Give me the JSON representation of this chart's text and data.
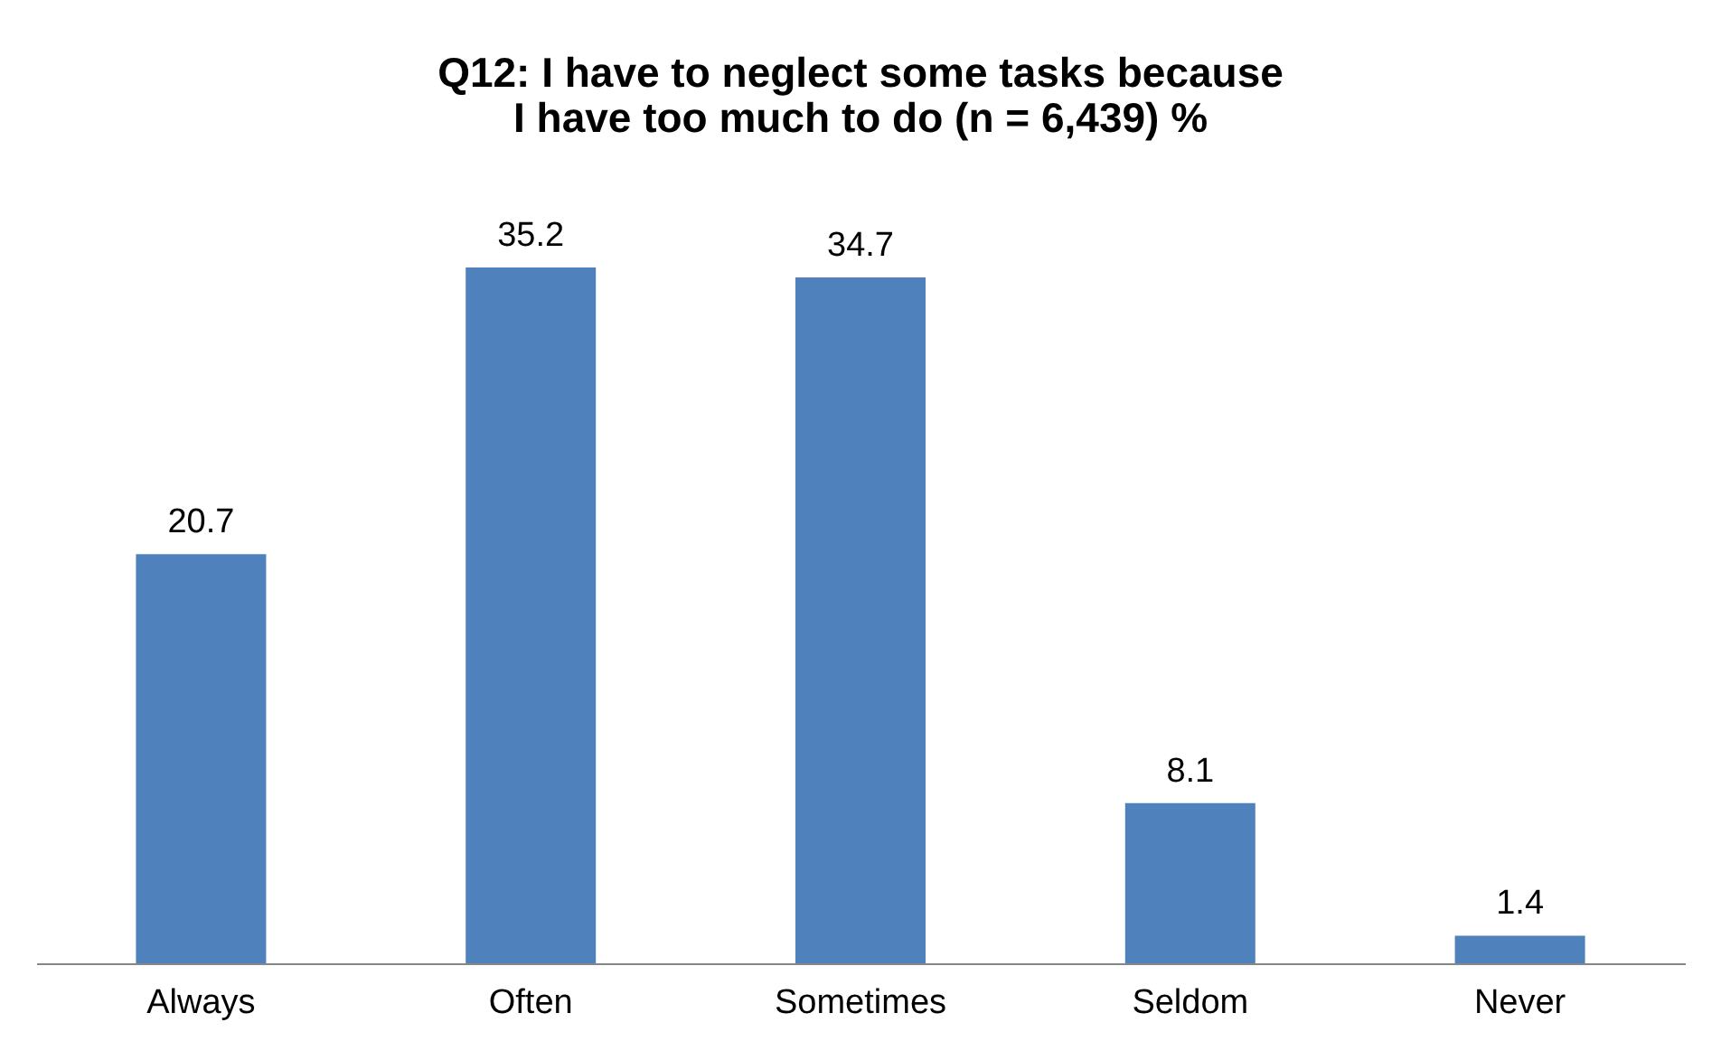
{
  "chart_data": {
    "type": "bar",
    "title": "Q12:  I have to neglect some tasks because I have too much to do (n = 6,439)  %",
    "categories": [
      "Always",
      "Often",
      "Sometimes",
      "Seldom",
      "Never"
    ],
    "values": [
      20.7,
      35.2,
      34.7,
      8.1,
      1.4
    ],
    "color": "#4f81bd",
    "data_labels": true
  }
}
